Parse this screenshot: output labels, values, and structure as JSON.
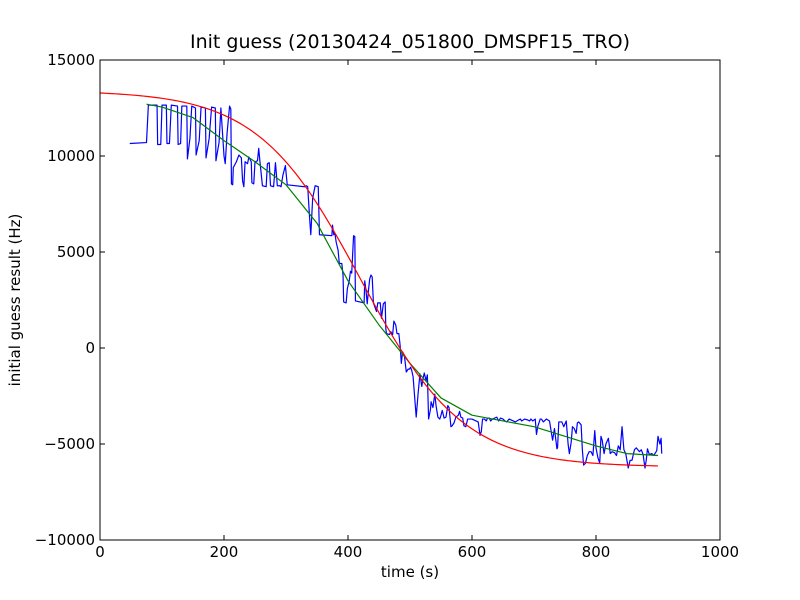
{
  "chart_data": {
    "type": "line",
    "title": "Init guess (20130424_051800_DMSPF15_TRO)",
    "xlabel": "time (s)",
    "ylabel": "initial guess result (Hz)",
    "xlim": [
      0,
      1000
    ],
    "ylim": [
      -10000,
      15000
    ],
    "x_ticks": [
      0,
      200,
      400,
      600,
      800,
      1000
    ],
    "y_ticks": [
      -10000,
      -5000,
      0,
      5000,
      10000,
      15000
    ],
    "x_tick_labels": [
      "0",
      "200",
      "400",
      "600",
      "800",
      "1000"
    ],
    "y_tick_labels": [
      "−10000",
      "−5000",
      "0",
      "5000",
      "10000",
      "15000"
    ],
    "grid": false,
    "series": [
      {
        "color": "#0000ff",
        "kind": "raw",
        "points": [
          [
            48,
            10650
          ],
          [
            75,
            10700
          ],
          [
            78,
            12650
          ],
          [
            92,
            12650
          ],
          [
            93,
            10600
          ],
          [
            98,
            10600
          ],
          [
            100,
            12650
          ],
          [
            107,
            12650
          ],
          [
            108,
            10650
          ],
          [
            112,
            10650
          ],
          [
            115,
            12650
          ],
          [
            125,
            12600
          ],
          [
            126,
            10600
          ],
          [
            130,
            10650
          ],
          [
            132,
            12600
          ],
          [
            140,
            12600
          ],
          [
            141,
            9850
          ],
          [
            145,
            10900
          ],
          [
            148,
            12600
          ],
          [
            154,
            12500
          ],
          [
            155,
            10050
          ],
          [
            160,
            10800
          ],
          [
            163,
            12550
          ],
          [
            170,
            12500
          ],
          [
            171,
            9900
          ],
          [
            176,
            10900
          ],
          [
            180,
            12550
          ],
          [
            186,
            12500
          ],
          [
            187,
            9750
          ],
          [
            192,
            10700
          ],
          [
            195,
            12500
          ],
          [
            197,
            11500
          ],
          [
            200,
            10000
          ],
          [
            202,
            9600
          ],
          [
            205,
            11200
          ],
          [
            209,
            12600
          ],
          [
            211,
            12450
          ],
          [
            212,
            8550
          ],
          [
            214,
            8500
          ],
          [
            215,
            9400
          ],
          [
            220,
            9700
          ],
          [
            224,
            10050
          ],
          [
            228,
            9900
          ],
          [
            230,
            8700
          ],
          [
            232,
            8400
          ],
          [
            234,
            9700
          ],
          [
            238,
            9600
          ],
          [
            240,
            9950
          ],
          [
            244,
            9700
          ],
          [
            245,
            8600
          ],
          [
            248,
            8550
          ],
          [
            250,
            9700
          ],
          [
            254,
            9750
          ],
          [
            256,
            10400
          ],
          [
            258,
            9700
          ],
          [
            262,
            8450
          ],
          [
            268,
            8400
          ],
          [
            270,
            9600
          ],
          [
            273,
            9650
          ],
          [
            275,
            8450
          ],
          [
            280,
            8400
          ],
          [
            283,
            9650
          ],
          [
            286,
            8450
          ],
          [
            290,
            8450
          ],
          [
            292,
            8400
          ],
          [
            295,
            9000
          ],
          [
            299,
            9500
          ],
          [
            302,
            8500
          ],
          [
            330,
            8400
          ],
          [
            333,
            8450
          ],
          [
            335,
            8400
          ],
          [
            338,
            6800
          ],
          [
            340,
            5900
          ],
          [
            343,
            7800
          ],
          [
            347,
            8450
          ],
          [
            352,
            8400
          ],
          [
            354,
            5900
          ],
          [
            374,
            5850
          ],
          [
            375,
            6400
          ],
          [
            377,
            5900
          ],
          [
            379,
            5950
          ],
          [
            381,
            5500
          ],
          [
            384,
            5100
          ],
          [
            386,
            4400
          ],
          [
            390,
            4400
          ],
          [
            392,
            3800
          ],
          [
            393,
            2400
          ],
          [
            397,
            2350
          ],
          [
            399,
            3100
          ],
          [
            402,
            3500
          ],
          [
            404,
            4000
          ],
          [
            406,
            3900
          ],
          [
            409,
            5850
          ],
          [
            411,
            5800
          ],
          [
            412,
            2450
          ],
          [
            426,
            2350
          ],
          [
            427,
            3500
          ],
          [
            429,
            3000
          ],
          [
            431,
            2300
          ],
          [
            433,
            3000
          ],
          [
            435,
            3600
          ],
          [
            437,
            3800
          ],
          [
            439,
            3700
          ],
          [
            441,
            2350
          ],
          [
            446,
            1900
          ],
          [
            448,
            2350
          ],
          [
            452,
            2350
          ],
          [
            454,
            1550
          ],
          [
            457,
            2300
          ],
          [
            460,
            2400
          ],
          [
            461,
            1000
          ],
          [
            462,
            750
          ],
          [
            467,
            700
          ],
          [
            469,
            850
          ],
          [
            472,
            700
          ],
          [
            474,
            1400
          ],
          [
            477,
            1200
          ],
          [
            479,
            750
          ],
          [
            482,
            750
          ],
          [
            484,
            150
          ],
          [
            486,
            -800
          ],
          [
            488,
            -200
          ],
          [
            491,
            -400
          ],
          [
            494,
            -1250
          ],
          [
            497,
            -1100
          ],
          [
            499,
            -1100
          ],
          [
            501,
            -1000
          ],
          [
            503,
            -1200
          ],
          [
            505,
            -1500
          ],
          [
            510,
            -3600
          ],
          [
            513,
            -2400
          ],
          [
            516,
            -1350
          ],
          [
            519,
            -2000
          ],
          [
            521,
            -1600
          ],
          [
            523,
            -1300
          ],
          [
            526,
            -1700
          ],
          [
            528,
            -1400
          ],
          [
            530,
            -3700
          ],
          [
            533,
            -3200
          ],
          [
            534,
            -2800
          ],
          [
            537,
            -3100
          ],
          [
            540,
            -2400
          ],
          [
            542,
            -3000
          ],
          [
            545,
            -3600
          ],
          [
            548,
            -3700
          ],
          [
            550,
            -3500
          ],
          [
            552,
            -3250
          ],
          [
            555,
            -3650
          ],
          [
            558,
            -3600
          ],
          [
            561,
            -3000
          ],
          [
            563,
            -3100
          ],
          [
            566,
            -4100
          ],
          [
            568,
            -4050
          ],
          [
            571,
            -3900
          ],
          [
            574,
            -3600
          ],
          [
            578,
            -3500
          ],
          [
            580,
            -3300
          ],
          [
            582,
            -3600
          ],
          [
            585,
            -3650
          ],
          [
            587,
            -4050
          ],
          [
            590,
            -4100
          ],
          [
            593,
            -3700
          ],
          [
            600,
            -3700
          ],
          [
            610,
            -3850
          ],
          [
            613,
            -4550
          ],
          [
            615,
            -4350
          ],
          [
            617,
            -3700
          ],
          [
            620,
            -3700
          ],
          [
            623,
            -3800
          ],
          [
            625,
            -3650
          ],
          [
            628,
            -3650
          ],
          [
            630,
            -3800
          ],
          [
            633,
            -3700
          ],
          [
            640,
            -3600
          ],
          [
            643,
            -3800
          ],
          [
            646,
            -3650
          ],
          [
            650,
            -3700
          ],
          [
            653,
            -3800
          ],
          [
            656,
            -3850
          ],
          [
            660,
            -3700
          ],
          [
            670,
            -3850
          ],
          [
            675,
            -3750
          ],
          [
            678,
            -3700
          ],
          [
            680,
            -3800
          ],
          [
            685,
            -3700
          ],
          [
            690,
            -3750
          ],
          [
            693,
            -3800
          ],
          [
            695,
            -3700
          ],
          [
            698,
            -3800
          ],
          [
            702,
            -3700
          ],
          [
            704,
            -4500
          ],
          [
            706,
            -4100
          ],
          [
            710,
            -3700
          ],
          [
            712,
            -3700
          ],
          [
            715,
            -3850
          ],
          [
            720,
            -3700
          ],
          [
            725,
            -3800
          ],
          [
            730,
            -4800
          ],
          [
            733,
            -4200
          ],
          [
            737,
            -5250
          ],
          [
            738,
            -5200
          ],
          [
            740,
            -3850
          ],
          [
            745,
            -3850
          ],
          [
            748,
            -4100
          ],
          [
            752,
            -3800
          ],
          [
            755,
            -5000
          ],
          [
            757,
            -5500
          ],
          [
            760,
            -4900
          ],
          [
            762,
            -4100
          ],
          [
            765,
            -4200
          ],
          [
            768,
            -4450
          ],
          [
            770,
            -3900
          ],
          [
            772,
            -3850
          ],
          [
            776,
            -4000
          ],
          [
            778,
            -5300
          ],
          [
            780,
            -6100
          ],
          [
            783,
            -6000
          ],
          [
            786,
            -5600
          ],
          [
            789,
            -5400
          ],
          [
            792,
            -5400
          ],
          [
            795,
            -5600
          ],
          [
            798,
            -4300
          ],
          [
            800,
            -5200
          ],
          [
            803,
            -5700
          ],
          [
            806,
            -6000
          ],
          [
            808,
            -4600
          ],
          [
            810,
            -4800
          ],
          [
            813,
            -5500
          ],
          [
            816,
            -5000
          ],
          [
            820,
            -4700
          ],
          [
            823,
            -5500
          ],
          [
            826,
            -5400
          ],
          [
            830,
            -5450
          ],
          [
            833,
            -5600
          ],
          [
            836,
            -5100
          ],
          [
            839,
            -5300
          ],
          [
            842,
            -4100
          ],
          [
            845,
            -5300
          ],
          [
            848,
            -5500
          ],
          [
            852,
            -6250
          ],
          [
            855,
            -5850
          ],
          [
            858,
            -5850
          ],
          [
            862,
            -5300
          ],
          [
            865,
            -5200
          ],
          [
            870,
            -5400
          ],
          [
            873,
            -5300
          ],
          [
            876,
            -5550
          ],
          [
            879,
            -6250
          ],
          [
            881,
            -5850
          ],
          [
            883,
            -5250
          ],
          [
            886,
            -5550
          ],
          [
            890,
            -5500
          ],
          [
            893,
            -5600
          ],
          [
            898,
            -5350
          ],
          [
            900,
            -4600
          ],
          [
            903,
            -5000
          ],
          [
            905,
            -4700
          ],
          [
            906,
            -5500
          ]
        ]
      },
      {
        "color": "#008000",
        "kind": "smoothed",
        "points": [
          [
            75,
            12700
          ],
          [
            100,
            12550
          ],
          [
            150,
            12000
          ],
          [
            200,
            10800
          ],
          [
            250,
            9700
          ],
          [
            300,
            8500
          ],
          [
            350,
            6500
          ],
          [
            400,
            3500
          ],
          [
            450,
            1200
          ],
          [
            500,
            -800
          ],
          [
            550,
            -2600
          ],
          [
            600,
            -3500
          ],
          [
            650,
            -3800
          ],
          [
            700,
            -4100
          ],
          [
            750,
            -4600
          ],
          [
            800,
            -5100
          ],
          [
            850,
            -5500
          ],
          [
            900,
            -5600
          ]
        ]
      },
      {
        "color": "#ff0000",
        "kind": "fit",
        "model": "tanh",
        "params": {
          "center": 420,
          "amplitude": 9800,
          "offset": 3600,
          "width": 165
        },
        "x_range": [
          0,
          900
        ]
      }
    ]
  }
}
